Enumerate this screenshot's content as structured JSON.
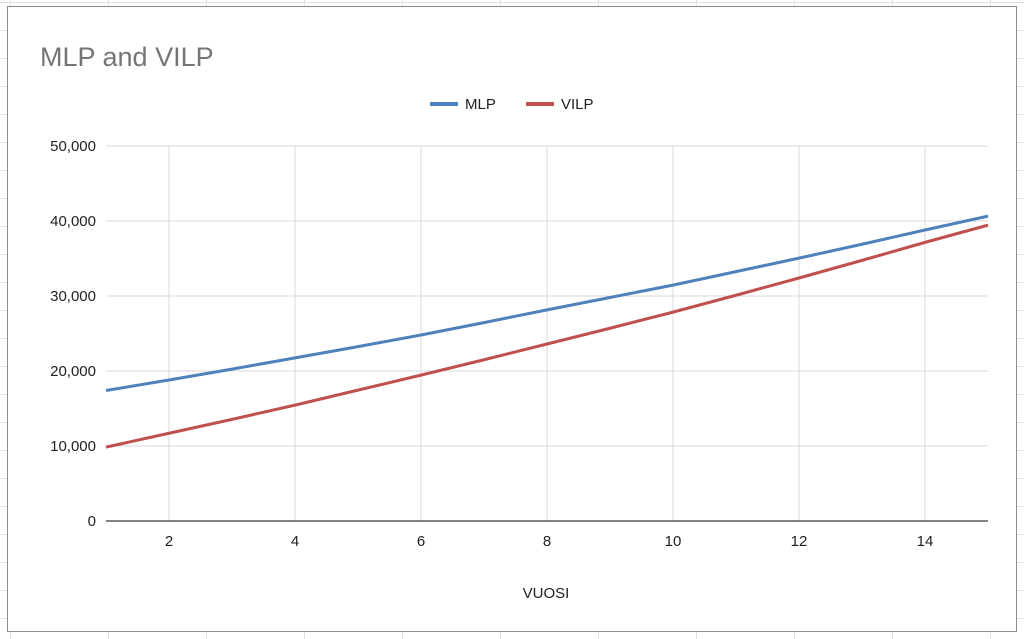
{
  "chart_data": {
    "type": "line",
    "title": "MLP and VILP",
    "xlabel": "VUOSI",
    "ylabel": "",
    "x": [
      1,
      2,
      3,
      4,
      5,
      6,
      7,
      8,
      9,
      10,
      11,
      12,
      13,
      14,
      15
    ],
    "xlim": [
      1,
      15
    ],
    "ylim": [
      0,
      50000
    ],
    "xticks": [
      2,
      4,
      6,
      8,
      10,
      12,
      14
    ],
    "yticks": [
      0,
      10000,
      20000,
      30000,
      40000,
      50000
    ],
    "ytick_labels": [
      "0",
      "10,000",
      "20,000",
      "30,000",
      "40,000",
      "50,000"
    ],
    "grid": true,
    "legend": "top",
    "series": [
      {
        "name": "MLP",
        "color": "#4f81bd",
        "values": [
          17400,
          18800,
          20250,
          21750,
          23250,
          24800,
          26450,
          28150,
          29800,
          31450,
          33250,
          35050,
          36900,
          38800,
          40650
        ]
      },
      {
        "name": "VILP",
        "color": "#c0504d",
        "values": [
          9850,
          11700,
          13550,
          15450,
          17450,
          19450,
          21500,
          23600,
          25700,
          27850,
          30100,
          32400,
          34750,
          37150,
          39450
        ]
      }
    ]
  }
}
